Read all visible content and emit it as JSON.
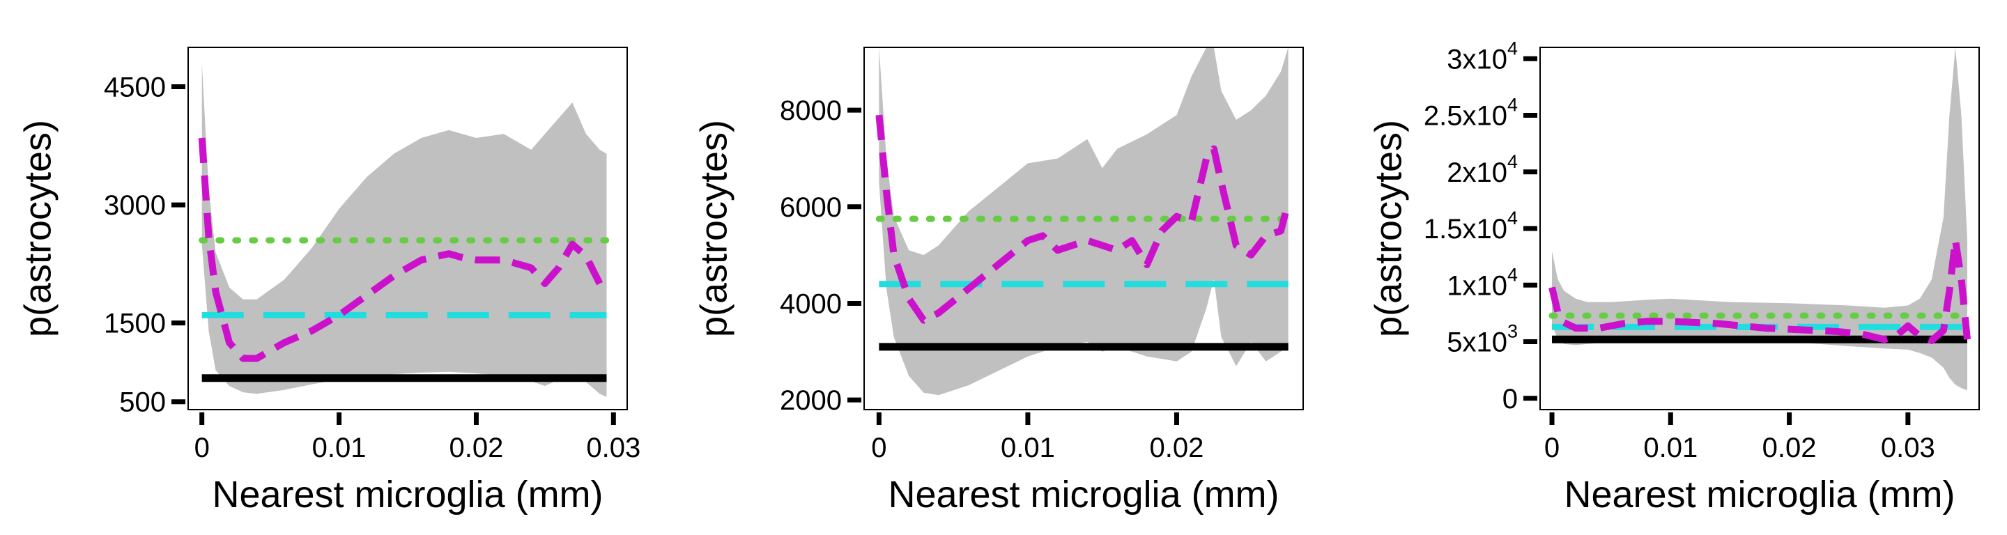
{
  "chart_data": [
    {
      "type": "line",
      "xlabel": "Nearest microglia (mm)",
      "ylabel": "p(astrocytes)",
      "xlim": [
        -0.001,
        0.031
      ],
      "ylim": [
        400,
        5000
      ],
      "x_ticks": [
        {
          "value": 0,
          "label": "0"
        },
        {
          "value": 0.01,
          "label": "0.01"
        },
        {
          "value": 0.02,
          "label": "0.02"
        },
        {
          "value": 0.03,
          "label": "0.03"
        }
      ],
      "y_ticks": [
        {
          "value": 500,
          "label": "500",
          "exp": ""
        },
        {
          "value": 1500,
          "label": "1500",
          "exp": ""
        },
        {
          "value": 3000,
          "label": "3000",
          "exp": ""
        },
        {
          "value": 4500,
          "label": "4500",
          "exp": ""
        }
      ],
      "colors": {
        "band": "#c0c0c0",
        "estimate": "#cc11cc",
        "black": "#000000",
        "cyan": "#22dddd",
        "green": "#66cc44"
      },
      "band": {
        "x": [
          0,
          0.0005,
          0.001,
          0.002,
          0.003,
          0.004,
          0.006,
          0.008,
          0.01,
          0.012,
          0.014,
          0.016,
          0.018,
          0.02,
          0.022,
          0.024,
          0.025,
          0.026,
          0.027,
          0.028,
          0.029,
          0.0295
        ],
        "upper": [
          4800,
          3200,
          2400,
          1950,
          1800,
          1800,
          2050,
          2450,
          2950,
          3350,
          3650,
          3850,
          3950,
          3850,
          3900,
          3700,
          3900,
          4100,
          4300,
          3900,
          3700,
          3650
        ],
        "lower": [
          2500,
          1400,
          900,
          700,
          620,
          600,
          650,
          720,
          780,
          820,
          850,
          870,
          880,
          860,
          830,
          760,
          700,
          780,
          850,
          750,
          600,
          560
        ]
      },
      "estimate": {
        "x": [
          0,
          0.0005,
          0.001,
          0.002,
          0.003,
          0.004,
          0.005,
          0.006,
          0.008,
          0.01,
          0.012,
          0.014,
          0.016,
          0.018,
          0.019,
          0.02,
          0.022,
          0.024,
          0.025,
          0.026,
          0.027,
          0.028,
          0.029
        ],
        "y": [
          3850,
          2600,
          1900,
          1250,
          1050,
          1050,
          1150,
          1250,
          1400,
          1600,
          1850,
          2100,
          2300,
          2380,
          2330,
          2300,
          2300,
          2200,
          2000,
          2200,
          2500,
          2350,
          2000
        ]
      },
      "hlines": [
        {
          "y": 800,
          "style": "solid"
        },
        {
          "y": 1600,
          "style": "longdash"
        },
        {
          "y": 2550,
          "style": "dotted"
        }
      ]
    },
    {
      "type": "line",
      "xlabel": "Nearest microglia (mm)",
      "ylabel": "p(astrocytes)",
      "xlim": [
        -0.001,
        0.0285
      ],
      "ylim": [
        1800,
        9300
      ],
      "x_ticks": [
        {
          "value": 0,
          "label": "0"
        },
        {
          "value": 0.01,
          "label": "0.01"
        },
        {
          "value": 0.02,
          "label": "0.02"
        }
      ],
      "y_ticks": [
        {
          "value": 2000,
          "label": "2000",
          "exp": ""
        },
        {
          "value": 4000,
          "label": "4000",
          "exp": ""
        },
        {
          "value": 6000,
          "label": "6000",
          "exp": ""
        },
        {
          "value": 8000,
          "label": "8000",
          "exp": ""
        }
      ],
      "colors": {
        "band": "#c0c0c0",
        "estimate": "#cc11cc",
        "black": "#000000",
        "cyan": "#22dddd",
        "green": "#66cc44"
      },
      "band": {
        "x": [
          0,
          0.0005,
          0.001,
          0.002,
          0.003,
          0.004,
          0.006,
          0.008,
          0.01,
          0.012,
          0.014,
          0.015,
          0.016,
          0.018,
          0.02,
          0.021,
          0.022,
          0.0225,
          0.023,
          0.024,
          0.025,
          0.026,
          0.027,
          0.0275
        ],
        "upper": [
          9300,
          7000,
          5800,
          5100,
          5000,
          5200,
          5900,
          6400,
          6900,
          7000,
          7400,
          6800,
          7200,
          7500,
          7900,
          8700,
          9300,
          9300,
          8400,
          7800,
          8000,
          8300,
          8800,
          9300
        ],
        "lower": [
          6500,
          4300,
          3300,
          2500,
          2150,
          2100,
          2300,
          2600,
          2900,
          3100,
          3200,
          3000,
          3100,
          2900,
          2800,
          3000,
          3900,
          4500,
          3300,
          2700,
          3200,
          2800,
          3000,
          3100
        ]
      },
      "estimate": {
        "x": [
          0,
          0.0005,
          0.001,
          0.002,
          0.003,
          0.004,
          0.006,
          0.008,
          0.01,
          0.011,
          0.012,
          0.013,
          0.014,
          0.015,
          0.016,
          0.017,
          0.018,
          0.019,
          0.02,
          0.021,
          0.022,
          0.0225,
          0.023,
          0.024,
          0.025,
          0.026,
          0.027,
          0.0275
        ],
        "y": [
          7900,
          6300,
          5000,
          4100,
          3650,
          3800,
          4300,
          4800,
          5300,
          5400,
          5100,
          5200,
          5300,
          5200,
          5100,
          5300,
          4800,
          5500,
          5800,
          5700,
          7000,
          7200,
          6500,
          5200,
          5000,
          5400,
          5500,
          6100
        ]
      },
      "hlines": [
        {
          "y": 3100,
          "style": "solid"
        },
        {
          "y": 4400,
          "style": "longdash"
        },
        {
          "y": 5750,
          "style": "dotted"
        }
      ]
    },
    {
      "type": "line",
      "xlabel": "Nearest microglia (mm)",
      "ylabel": "p(astrocytes)",
      "xlim": [
        -0.001,
        0.036
      ],
      "ylim": [
        -1000,
        31000
      ],
      "x_ticks": [
        {
          "value": 0,
          "label": "0"
        },
        {
          "value": 0.01,
          "label": "0.01"
        },
        {
          "value": 0.02,
          "label": "0.02"
        },
        {
          "value": 0.03,
          "label": "0.03"
        }
      ],
      "y_ticks": [
        {
          "value": 0,
          "label": "0",
          "exp": ""
        },
        {
          "value": 5000,
          "label": "5x10",
          "exp": "3"
        },
        {
          "value": 10000,
          "label": "1x10",
          "exp": "4"
        },
        {
          "value": 15000,
          "label": "1.5x10",
          "exp": "4"
        },
        {
          "value": 20000,
          "label": "2x10",
          "exp": "4"
        },
        {
          "value": 25000,
          "label": "2.5x10",
          "exp": "4"
        },
        {
          "value": 30000,
          "label": "3x10",
          "exp": "4"
        }
      ],
      "colors": {
        "band": "#c0c0c0",
        "estimate": "#cc11cc",
        "black": "#000000",
        "cyan": "#22dddd",
        "green": "#66cc44"
      },
      "band": {
        "x": [
          0,
          0.0005,
          0.001,
          0.002,
          0.003,
          0.005,
          0.008,
          0.01,
          0.015,
          0.02,
          0.025,
          0.028,
          0.03,
          0.031,
          0.032,
          0.033,
          0.0335,
          0.034,
          0.0345,
          0.035
        ],
        "upper": [
          13000,
          10500,
          9500,
          8800,
          8500,
          8500,
          8700,
          8800,
          8500,
          8400,
          8200,
          8000,
          8200,
          8800,
          10500,
          16000,
          25000,
          31000,
          25000,
          14000
        ],
        "lower": [
          6500,
          5200,
          4800,
          4700,
          4800,
          5000,
          5200,
          5200,
          5100,
          5000,
          4600,
          4400,
          4300,
          4000,
          3600,
          2700,
          1800,
          1200,
          900,
          700
        ]
      },
      "estimate": {
        "x": [
          0,
          0.0005,
          0.001,
          0.002,
          0.004,
          0.006,
          0.008,
          0.01,
          0.012,
          0.014,
          0.016,
          0.018,
          0.02,
          0.022,
          0.024,
          0.026,
          0.028,
          0.029,
          0.03,
          0.031,
          0.032,
          0.033,
          0.0335,
          0.034,
          0.0345,
          0.035
        ],
        "y": [
          9800,
          7600,
          6700,
          6200,
          6200,
          6600,
          6800,
          6800,
          6700,
          6600,
          6400,
          6200,
          6100,
          6000,
          5900,
          5700,
          5200,
          5500,
          6400,
          5500,
          5100,
          6000,
          9500,
          14000,
          10500,
          5200
        ]
      },
      "hlines": [
        {
          "y": 5200,
          "style": "solid"
        },
        {
          "y": 6300,
          "style": "longdash"
        },
        {
          "y": 7300,
          "style": "dotted"
        }
      ]
    }
  ]
}
